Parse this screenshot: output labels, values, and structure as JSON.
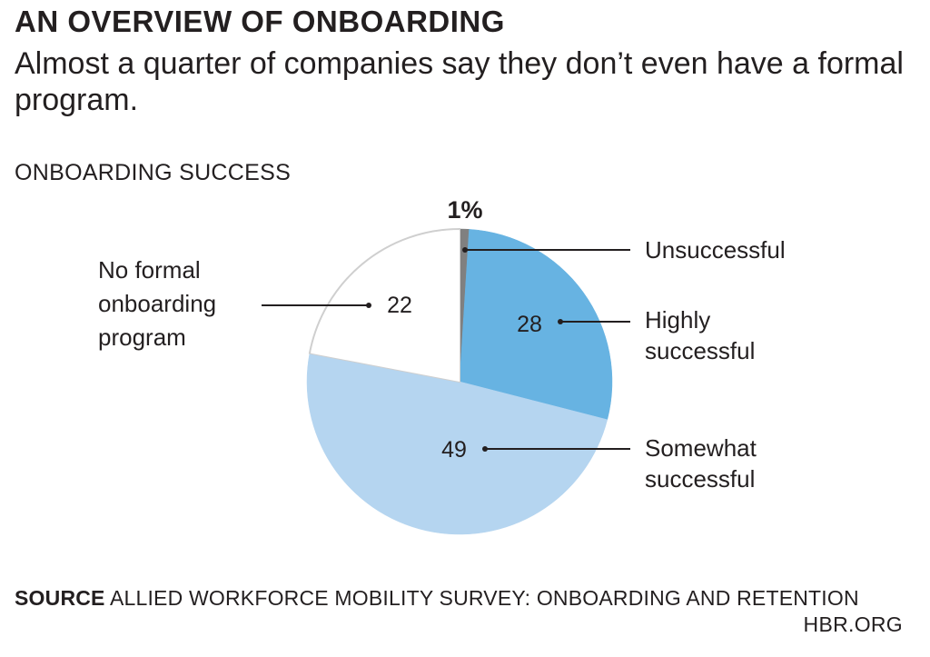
{
  "header": {
    "title": "AN OVERVIEW OF ONBOARDING",
    "subtitle": "Almost a quarter of companies say they don’t even have a formal program."
  },
  "chart_data": {
    "type": "pie",
    "title": "ONBOARDING SUCCESS",
    "slices": [
      {
        "label": "Unsuccessful",
        "value": 1,
        "value_label": "1%",
        "color": "#808080"
      },
      {
        "label": "Highly successful",
        "value": 28,
        "value_label": "28",
        "color": "#67b3e2"
      },
      {
        "label": "Somewhat successful",
        "value": 49,
        "value_label": "49",
        "color": "#b5d5f0"
      },
      {
        "label": "No formal onboarding program",
        "value": 22,
        "value_label": "22",
        "color": "#ffffff"
      }
    ],
    "start": "12 o'clock",
    "direction": "clockwise"
  },
  "footer": {
    "source_label": "SOURCE",
    "source_text": "ALLIED WORKFORCE MOBILITY SURVEY: ONBOARDING AND RETENTION",
    "site": "HBR.ORG"
  }
}
